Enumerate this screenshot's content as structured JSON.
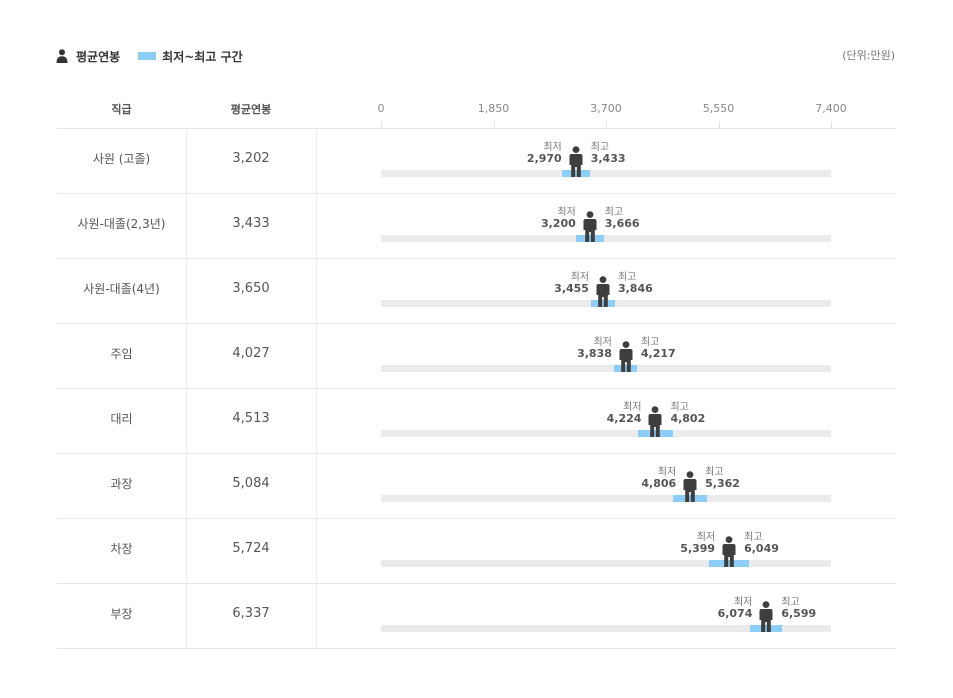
{
  "legend": {
    "avg_label": "평균연봉",
    "range_label": "최저~최고 구간",
    "unit": "(단위:만원)"
  },
  "table": {
    "col_grade": "직급",
    "col_avg": "평균연봉",
    "min_caption": "최저",
    "max_caption": "최고"
  },
  "colors": {
    "range": "#8ecdf7",
    "track": "#ebebeb",
    "person": "#3e3e3e"
  },
  "chart_data": {
    "type": "bar",
    "title": "",
    "xlim": [
      0,
      7400
    ],
    "ticks": [
      0,
      1850,
      3700,
      5550,
      7400
    ],
    "tick_labels": [
      "0",
      "1,850",
      "3,700",
      "5,550",
      "7,400"
    ],
    "categories": [
      "사원 (고졸)",
      "사원-대졸(2,3년)",
      "사원-대졸(4년)",
      "주임",
      "대리",
      "과장",
      "차장",
      "부장"
    ],
    "series": [
      {
        "name": "평균연봉",
        "values": [
          3202,
          3433,
          3650,
          4027,
          4513,
          5084,
          5724,
          6337
        ],
        "labels": [
          "3,202",
          "3,433",
          "3,650",
          "4,027",
          "4,513",
          "5,084",
          "5,724",
          "6,337"
        ]
      },
      {
        "name": "최저",
        "values": [
          2970,
          3200,
          3455,
          3838,
          4224,
          4806,
          5399,
          6074
        ],
        "labels": [
          "2,970",
          "3,200",
          "3,455",
          "3,838",
          "4,224",
          "4,806",
          "5,399",
          "6,074"
        ]
      },
      {
        "name": "최고",
        "values": [
          3433,
          3666,
          3846,
          4217,
          4802,
          5362,
          6049,
          6599
        ],
        "labels": [
          "3,433",
          "3,666",
          "3,846",
          "4,217",
          "4,802",
          "5,362",
          "6,049",
          "6,599"
        ]
      }
    ]
  }
}
